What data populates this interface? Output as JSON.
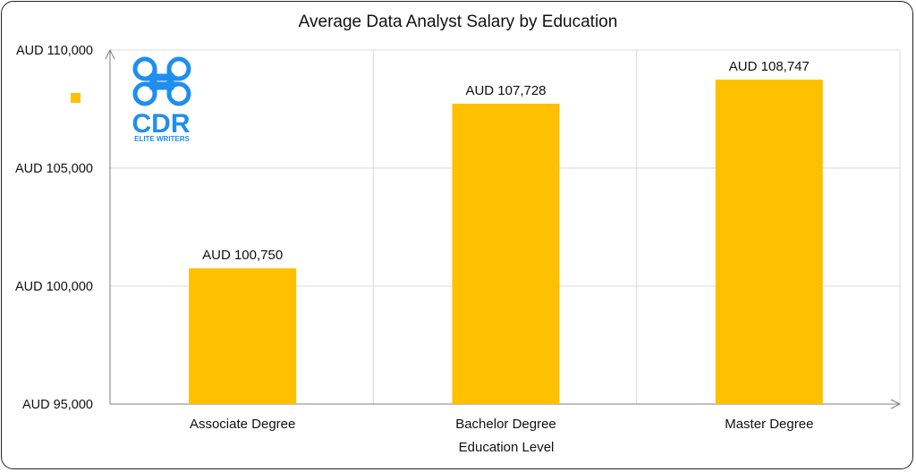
{
  "chart_data": {
    "type": "bar",
    "title": "Average Data Analyst Salary by Education",
    "xlabel": "Education Level",
    "ylabel": "",
    "categories": [
      "Associate Degree",
      "Bachelor Degree",
      "Master Degree"
    ],
    "values": [
      100750,
      107728,
      108747
    ],
    "data_labels": [
      "AUD 100,750",
      "AUD 107,728",
      "AUD 108,747"
    ],
    "ylim": [
      95000,
      110000
    ],
    "yticks": [
      95000,
      100000,
      105000,
      110000
    ],
    "ytick_labels": [
      "AUD 95,000",
      "AUD 100,000",
      "AUD 105,000",
      "AUD 110,000"
    ],
    "grid": true,
    "bar_color": "#FFC000",
    "gridline_color": "#d9d9d9",
    "axis_color": "#7f7f7f"
  },
  "logo": {
    "text": "CDR",
    "subtext": "ELITE WRITERS",
    "color": "#1e8ef0",
    "icon": "command-key-icon"
  }
}
